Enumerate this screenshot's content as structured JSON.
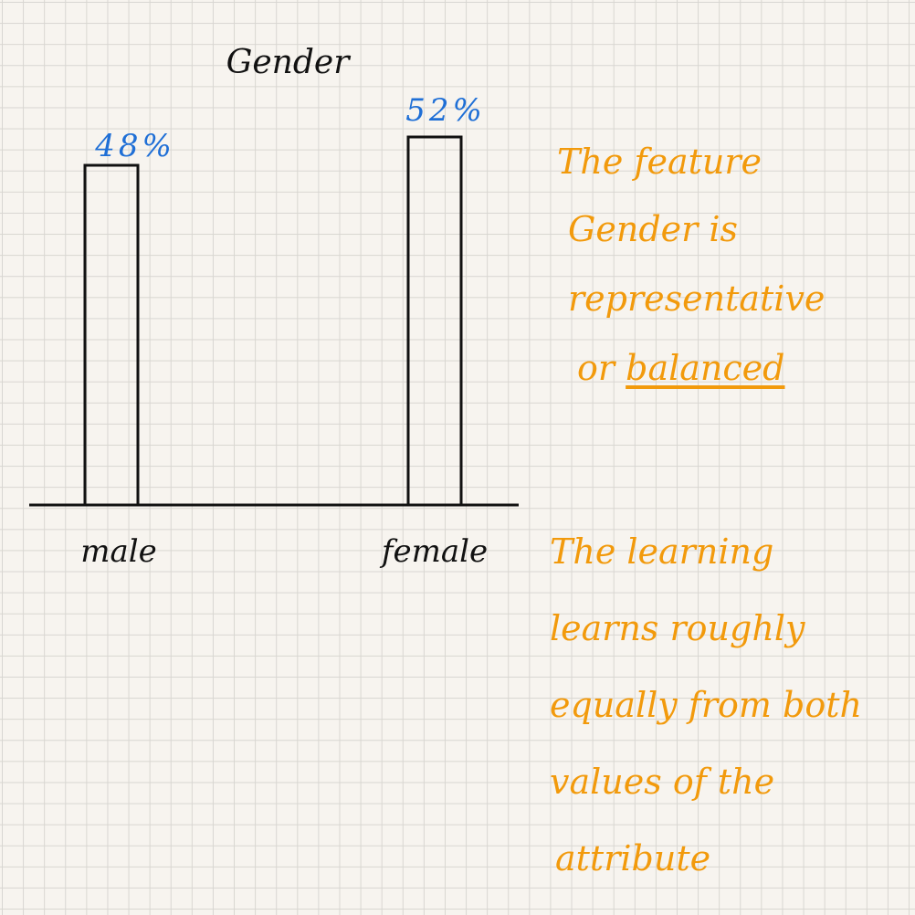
{
  "chart_data": {
    "type": "bar",
    "title": "Gender",
    "categories": [
      "male",
      "female"
    ],
    "values": [
      48,
      52
    ],
    "value_labels": [
      "48%",
      "52%"
    ],
    "unit": "%",
    "ylim": [
      0,
      60
    ],
    "xlabel": "",
    "ylabel": "",
    "grid": false,
    "legend": "none"
  },
  "notes": {
    "color": "#f29a0c",
    "value_label_color": "#1f6fd6",
    "note1": {
      "line1": "The feature",
      "line2": "Gender is",
      "line3": "representative",
      "line4_a": "or ",
      "line4_b": "balanced"
    },
    "note2": {
      "line1": "The learning",
      "line2": "learns roughly",
      "line3": "equally from both",
      "line4": "values of the",
      "line5": "attribute"
    }
  }
}
